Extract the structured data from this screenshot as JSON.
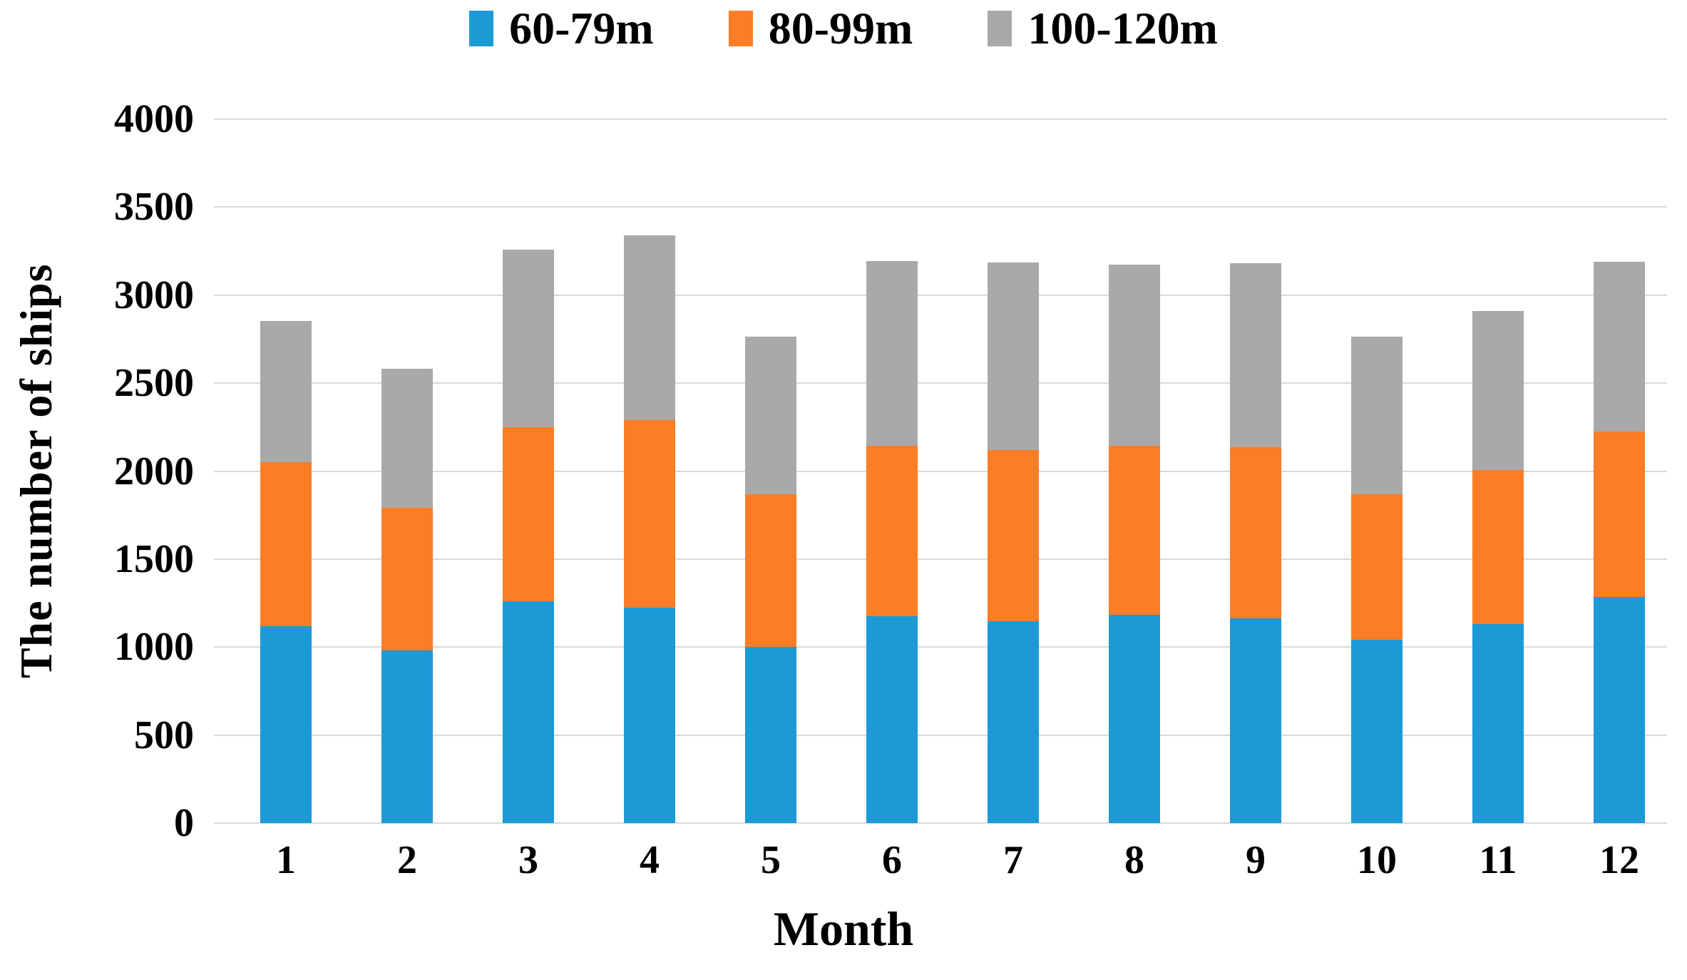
{
  "chart_data": {
    "type": "bar",
    "stacked": true,
    "title": "",
    "xlabel": "Month",
    "ylabel": "The number of ships",
    "categories": [
      "1",
      "2",
      "3",
      "4",
      "5",
      "6",
      "7",
      "8",
      "9",
      "10",
      "11",
      "12"
    ],
    "series": [
      {
        "name": "60-79m",
        "color": "#1b9ad6",
        "values": [
          1120,
          980,
          1260,
          1225,
          1000,
          1175,
          1145,
          1185,
          1165,
          1040,
          1130,
          1285
        ]
      },
      {
        "name": "80-99m",
        "color": "#fb7d26",
        "values": [
          930,
          810,
          990,
          1065,
          870,
          970,
          975,
          960,
          970,
          830,
          875,
          940
        ]
      },
      {
        "name": "100-120m",
        "color": "#a9a9a9",
        "values": [
          805,
          790,
          1010,
          1050,
          895,
          1050,
          1065,
          1030,
          1045,
          895,
          905,
          965
        ]
      }
    ],
    "stack_totals": [
      2855,
      2580,
      3260,
      3340,
      2765,
      3195,
      3185,
      3175,
      3180,
      2765,
      2910,
      3190
    ],
    "ylim": [
      0,
      4000
    ],
    "ytick_step": 500,
    "yticks": [
      0,
      500,
      1000,
      1500,
      2000,
      2500,
      3000,
      3500,
      4000
    ],
    "grid": true,
    "legend_position": "top",
    "colors": {
      "gridline": "#d9d9d9",
      "background": "#ffffff",
      "text": "#000000"
    }
  }
}
